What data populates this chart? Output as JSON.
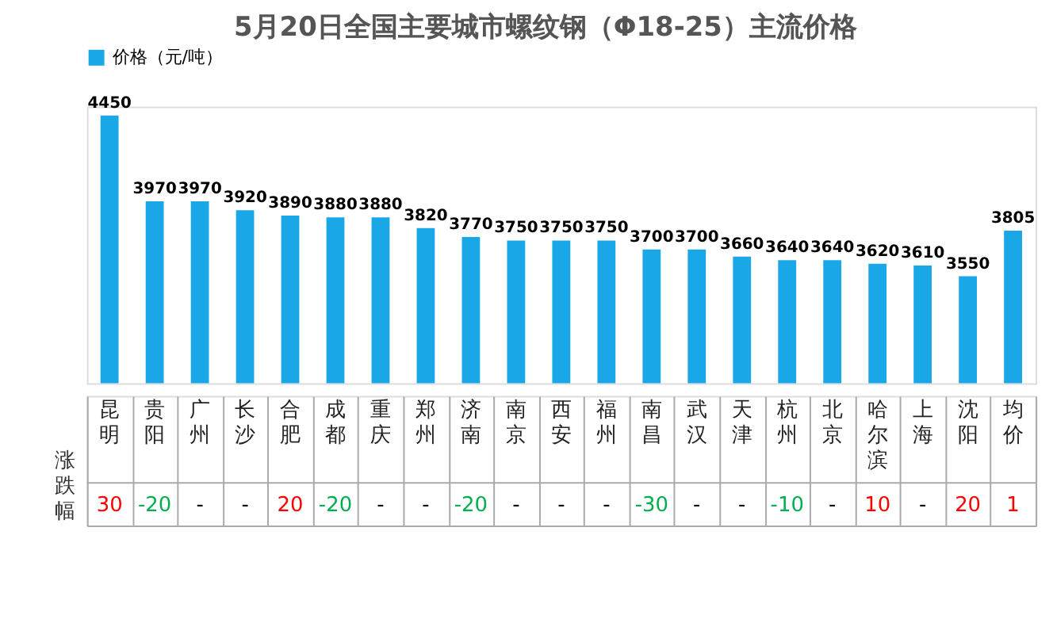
{
  "chart_data": {
    "type": "bar",
    "title": "5月20日全国主要城市螺纹钢（Φ18-25）主流价格",
    "categories": [
      "昆明",
      "贵阳",
      "广州",
      "长沙",
      "合肥",
      "成都",
      "重庆",
      "郑州",
      "济南",
      "南京",
      "西安",
      "福州",
      "南昌",
      "武汉",
      "天津",
      "杭州",
      "北京",
      "哈尔滨",
      "上海",
      "沈阳",
      "均价"
    ],
    "series": [
      {
        "name": "价格（元/吨）",
        "color": "#1aa7e8",
        "values": [
          4450,
          3970,
          3970,
          3920,
          3890,
          3880,
          3880,
          3820,
          3770,
          3750,
          3750,
          3750,
          3700,
          3700,
          3660,
          3640,
          3640,
          3620,
          3610,
          3550,
          3805
        ]
      }
    ],
    "ylim": [
      2950,
      4500
    ],
    "data_labels": true,
    "legend": "top",
    "grid": false,
    "annotations": [
      "涨跌幅",
      "30",
      "-20",
      "-",
      "-",
      "20",
      "-20",
      "-",
      "-",
      "-20",
      "-",
      "-",
      "-",
      "-30",
      "-",
      "-",
      "-10",
      "-",
      "10",
      "-",
      "20",
      "1"
    ]
  }
}
